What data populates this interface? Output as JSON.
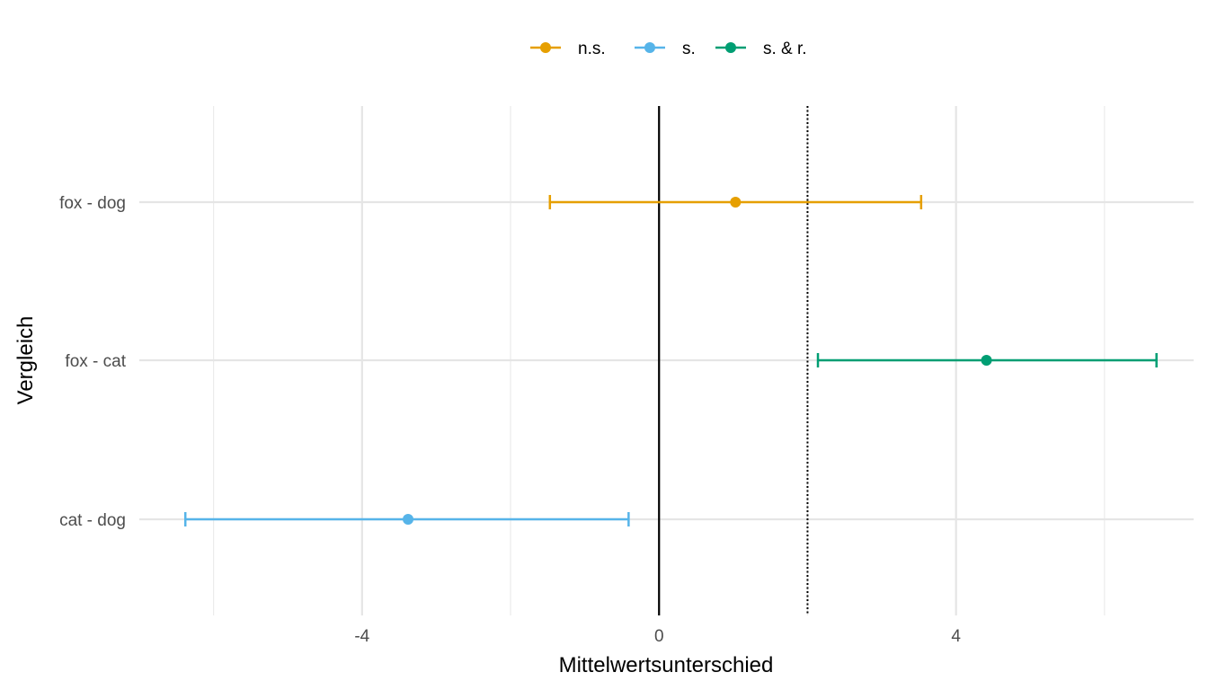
{
  "chart_data": {
    "type": "errorbar",
    "title": "",
    "xlabel": "Mittelwertsunterschied",
    "ylabel": "Vergleich",
    "xlim": [
      -7.0,
      7.2
    ],
    "x_ticks": [
      -4,
      0,
      4
    ],
    "x_tick_labels": [
      "-4",
      "0",
      "4"
    ],
    "x_minor_gridlines": [
      -6,
      -2,
      2,
      6
    ],
    "categories": [
      "fox - dog",
      "fox - cat",
      "cat - dog"
    ],
    "grid": true,
    "legend_position": "top",
    "reference_lines": [
      {
        "x": 0,
        "style": "solid",
        "color": "#000000"
      },
      {
        "x": 2,
        "style": "dotted",
        "color": "#000000"
      }
    ],
    "series": [
      {
        "name": "n.s.",
        "color": "#E69F00",
        "points": [
          {
            "category": "fox - dog",
            "estimate": 1.03,
            "lower": -1.47,
            "upper": 3.53
          }
        ]
      },
      {
        "name": "s.",
        "color": "#56B4E9",
        "points": [
          {
            "category": "cat - dog",
            "estimate": -3.38,
            "lower": -6.38,
            "upper": -0.41
          }
        ]
      },
      {
        "name": "s. & r.",
        "color": "#009E73",
        "points": [
          {
            "category": "fox - cat",
            "estimate": 4.41,
            "lower": 2.14,
            "upper": 6.7
          }
        ]
      }
    ]
  }
}
